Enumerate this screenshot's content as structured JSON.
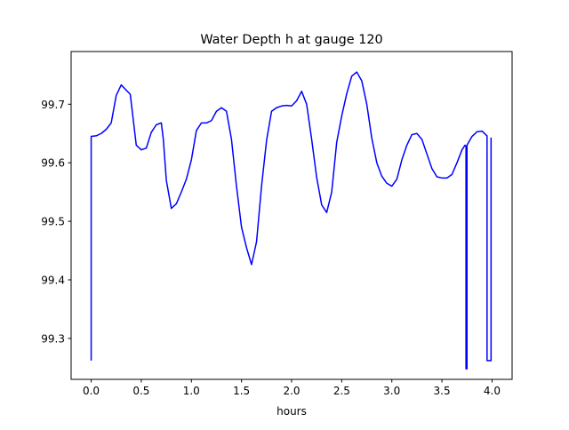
{
  "chart_data": {
    "type": "line",
    "title": "Water Depth h at gauge 120",
    "xlabel": "hours",
    "ylabel": "",
    "xlim": [
      -0.2,
      4.2
    ],
    "ylim": [
      99.23,
      99.79
    ],
    "xticks": [
      0.0,
      0.5,
      1.0,
      1.5,
      2.0,
      2.5,
      3.0,
      3.5,
      4.0
    ],
    "xtick_labels": [
      "0.0",
      "0.5",
      "1.0",
      "1.5",
      "2.0",
      "2.5",
      "3.0",
      "3.5",
      "4.0"
    ],
    "yticks": [
      99.3,
      99.4,
      99.5,
      99.6,
      99.7
    ],
    "ytick_labels": [
      "99.3",
      "99.4",
      "99.5",
      "99.6",
      "99.7"
    ],
    "grid": false,
    "series": [
      {
        "color": "#0000ff",
        "points": [
          [
            0.0,
            99.262
          ],
          [
            0.0,
            99.645
          ],
          [
            0.05,
            99.646
          ],
          [
            0.1,
            99.65
          ],
          [
            0.15,
            99.657
          ],
          [
            0.2,
            99.668
          ],
          [
            0.25,
            99.715
          ],
          [
            0.3,
            99.733
          ],
          [
            0.35,
            99.724
          ],
          [
            0.39,
            99.717
          ],
          [
            0.45,
            99.63
          ],
          [
            0.5,
            99.622
          ],
          [
            0.55,
            99.625
          ],
          [
            0.6,
            99.652
          ],
          [
            0.65,
            99.665
          ],
          [
            0.7,
            99.668
          ],
          [
            0.72,
            99.64
          ],
          [
            0.75,
            99.57
          ],
          [
            0.8,
            99.522
          ],
          [
            0.85,
            99.53
          ],
          [
            0.9,
            99.55
          ],
          [
            0.95,
            99.572
          ],
          [
            1.0,
            99.605
          ],
          [
            1.05,
            99.655
          ],
          [
            1.1,
            99.668
          ],
          [
            1.15,
            99.668
          ],
          [
            1.2,
            99.672
          ],
          [
            1.25,
            99.688
          ],
          [
            1.3,
            99.694
          ],
          [
            1.35,
            99.688
          ],
          [
            1.4,
            99.64
          ],
          [
            1.45,
            99.56
          ],
          [
            1.5,
            99.49
          ],
          [
            1.55,
            99.455
          ],
          [
            1.6,
            99.426
          ],
          [
            1.65,
            99.465
          ],
          [
            1.7,
            99.56
          ],
          [
            1.75,
            99.638
          ],
          [
            1.8,
            99.688
          ],
          [
            1.85,
            99.694
          ],
          [
            1.9,
            99.697
          ],
          [
            1.95,
            99.698
          ],
          [
            2.0,
            99.697
          ],
          [
            2.05,
            99.706
          ],
          [
            2.1,
            99.722
          ],
          [
            2.15,
            99.7
          ],
          [
            2.2,
            99.64
          ],
          [
            2.25,
            99.575
          ],
          [
            2.3,
            99.528
          ],
          [
            2.35,
            99.515
          ],
          [
            2.4,
            99.55
          ],
          [
            2.45,
            99.635
          ],
          [
            2.5,
            99.68
          ],
          [
            2.55,
            99.718
          ],
          [
            2.6,
            99.748
          ],
          [
            2.65,
            99.755
          ],
          [
            2.7,
            99.74
          ],
          [
            2.75,
            99.7
          ],
          [
            2.8,
            99.642
          ],
          [
            2.85,
            99.6
          ],
          [
            2.9,
            99.577
          ],
          [
            2.95,
            99.565
          ],
          [
            3.0,
            99.56
          ],
          [
            3.05,
            99.572
          ],
          [
            3.1,
            99.605
          ],
          [
            3.15,
            99.63
          ],
          [
            3.2,
            99.648
          ],
          [
            3.25,
            99.65
          ],
          [
            3.3,
            99.64
          ],
          [
            3.35,
            99.615
          ],
          [
            3.4,
            99.59
          ],
          [
            3.45,
            99.576
          ],
          [
            3.5,
            99.574
          ],
          [
            3.55,
            99.574
          ],
          [
            3.6,
            99.58
          ],
          [
            3.65,
            99.6
          ],
          [
            3.7,
            99.622
          ],
          [
            3.73,
            99.63
          ],
          [
            3.74,
            99.628
          ],
          [
            3.74,
            99.248
          ],
          [
            3.75,
            99.248
          ],
          [
            3.75,
            99.63
          ],
          [
            3.8,
            99.645
          ],
          [
            3.85,
            99.653
          ],
          [
            3.9,
            99.654
          ],
          [
            3.95,
            99.646
          ],
          [
            3.95,
            99.262
          ],
          [
            3.99,
            99.262
          ],
          [
            3.99,
            99.643
          ]
        ]
      }
    ]
  }
}
